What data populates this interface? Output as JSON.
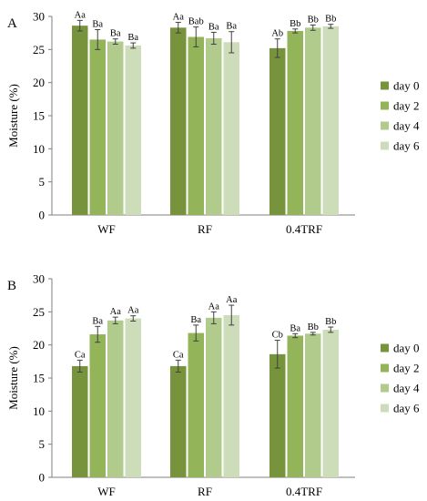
{
  "colors": [
    "#77933c",
    "#93b459",
    "#b1cb8c",
    "#cddcb9"
  ],
  "chart_data": [
    {
      "type": "bar",
      "panel_label": "A",
      "title": "",
      "xlabel": "",
      "ylabel": "Moisture (%)",
      "ylim": [
        0,
        30
      ],
      "yticks": [
        0,
        5,
        10,
        15,
        20,
        25,
        30
      ],
      "grid": false,
      "legend_position": "right",
      "categories": [
        "WF",
        "RF",
        "0.4TRF"
      ],
      "series": [
        {
          "name": "day 0",
          "values": [
            28.6,
            28.3,
            25.2
          ],
          "errors": [
            0.8,
            0.8,
            1.4
          ],
          "labels": [
            "Aa",
            "Aa",
            "Ab"
          ]
        },
        {
          "name": "day 2",
          "values": [
            26.5,
            26.9,
            27.8
          ],
          "errors": [
            1.5,
            1.5,
            0.3
          ],
          "labels": [
            "Ba",
            "Bab",
            "Bb"
          ]
        },
        {
          "name": "day 4",
          "values": [
            26.2,
            26.7,
            28.3
          ],
          "errors": [
            0.4,
            0.9,
            0.4
          ],
          "labels": [
            "Ba",
            "Ba",
            "Bb"
          ]
        },
        {
          "name": "day 6",
          "values": [
            25.6,
            26.1,
            28.5
          ],
          "errors": [
            0.4,
            1.6,
            0.3
          ],
          "labels": [
            "Ba",
            "Ba",
            "Bb"
          ]
        }
      ]
    },
    {
      "type": "bar",
      "panel_label": "B",
      "title": "",
      "xlabel": "",
      "ylabel": "Moisture (%)",
      "ylim": [
        0,
        30
      ],
      "yticks": [
        0,
        5,
        10,
        15,
        20,
        25,
        30
      ],
      "grid": false,
      "legend_position": "right",
      "categories": [
        "WF",
        "RF",
        "0.4TRF"
      ],
      "series": [
        {
          "name": "day 0",
          "values": [
            16.8,
            16.8,
            18.6
          ],
          "errors": [
            0.9,
            0.9,
            2.1
          ],
          "labels": [
            "Ca",
            "Ca",
            "Cb"
          ]
        },
        {
          "name": "day 2",
          "values": [
            21.6,
            21.8,
            21.4
          ],
          "errors": [
            1.2,
            1.2,
            0.3
          ],
          "labels": [
            "Ba",
            "Ba",
            "Ba"
          ]
        },
        {
          "name": "day 4",
          "values": [
            23.7,
            24.1,
            21.7
          ],
          "errors": [
            0.5,
            0.9,
            0.2
          ],
          "labels": [
            "Aa",
            "Aa",
            "Bb"
          ]
        },
        {
          "name": "day 6",
          "values": [
            24.0,
            24.5,
            22.3
          ],
          "errors": [
            0.4,
            1.5,
            0.4
          ],
          "labels": [
            "Aa",
            "Aa",
            "Bb"
          ]
        }
      ]
    }
  ]
}
